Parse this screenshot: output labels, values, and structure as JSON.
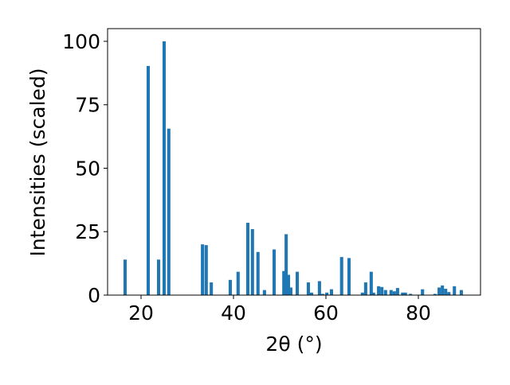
{
  "chart_data": {
    "type": "bar",
    "xlabel": "2θ (°)",
    "ylabel": "Intensities (scaled)",
    "x": [
      16.55,
      21.55,
      23.8,
      25.0,
      26.0,
      33.3,
      34.1,
      35.2,
      39.3,
      41.0,
      43.1,
      44.1,
      45.3,
      46.7,
      48.8,
      50.9,
      51.4,
      51.9,
      52.4,
      53.8,
      56.2,
      56.9,
      58.6,
      59.3,
      60.2,
      61.2,
      63.4,
      65.0,
      67.9,
      68.6,
      69.8,
      70.3,
      71.4,
      72.1,
      72.9,
      74.1,
      74.8,
      75.5,
      76.6,
      77.2,
      78.3,
      80.9,
      83.6,
      84.5,
      85.2,
      85.9,
      86.6,
      87.8,
      89.3
    ],
    "values": [
      14,
      90.3,
      14,
      100,
      65.6,
      20,
      19.7,
      5,
      6,
      9.2,
      28.5,
      26,
      17,
      2,
      18,
      9.5,
      24,
      8,
      3,
      9.2,
      5,
      1,
      5.5,
      0.5,
      1,
      2.3,
      15,
      14.6,
      1,
      5,
      9.2,
      1,
      3.5,
      3.2,
      2,
      2,
      1.5,
      2.8,
      1,
      1,
      0.5,
      2.3,
      0.5,
      3,
      3.8,
      2.5,
      1.2,
      3.5,
      2
    ],
    "color": "#1f77b4",
    "xlim": [
      12.76,
      93.45
    ],
    "xticks": [
      20,
      40,
      60,
      80
    ],
    "ylim": [
      0,
      105
    ],
    "yticks": [
      0,
      25,
      50,
      75,
      100
    ]
  }
}
